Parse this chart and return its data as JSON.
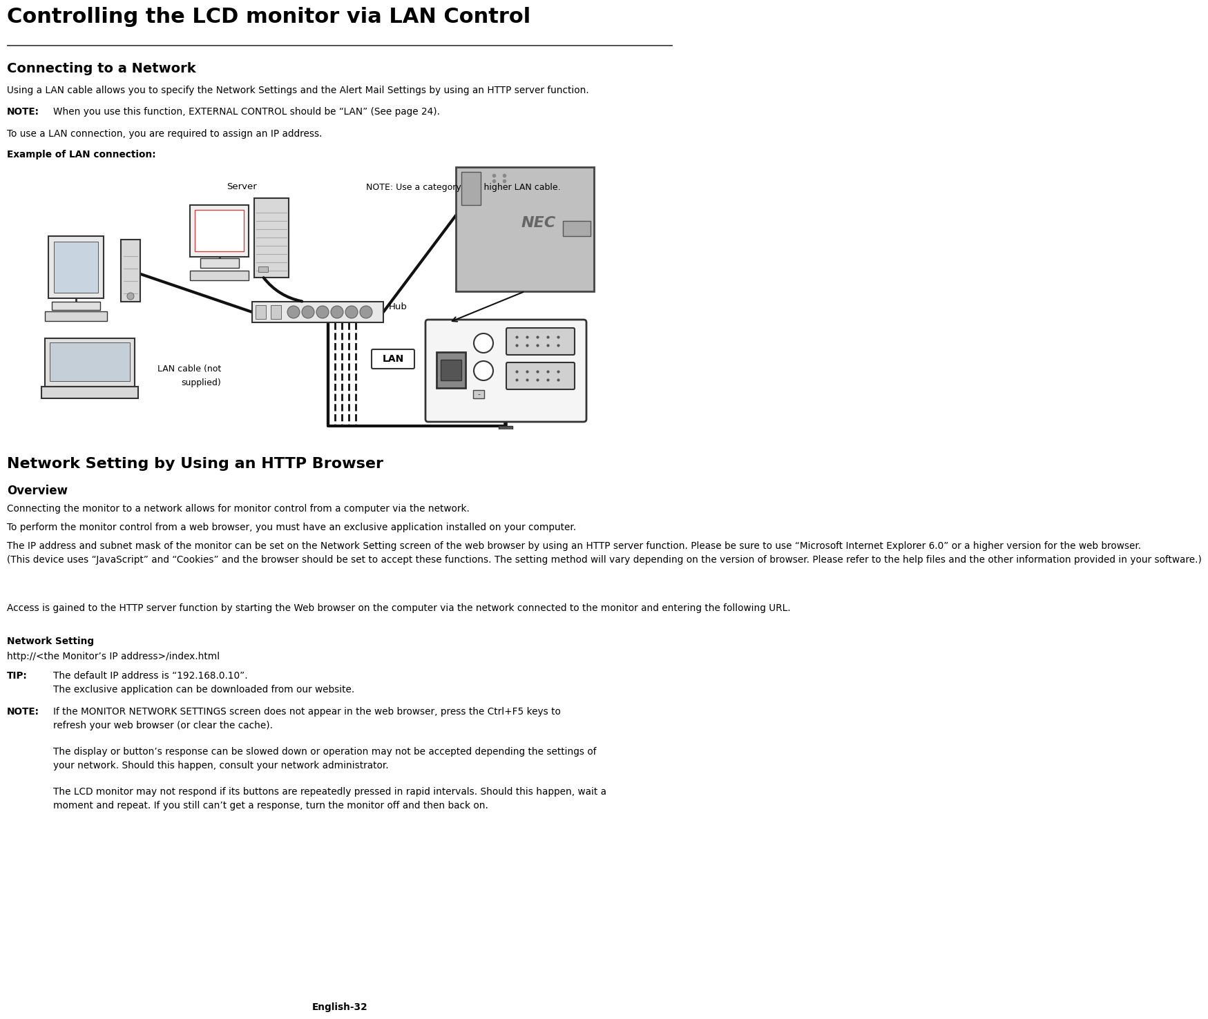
{
  "bg_color": "#ffffff",
  "title": "Controlling the LCD monitor via LAN Control",
  "section1_title": "Connecting to a Network",
  "section1_body": "Using a LAN cable allows you to specify the Network Settings and the Alert Mail Settings by using an HTTP server function.",
  "note1_label": "NOTE:",
  "note1_text": "When you use this function, EXTERNAL CONTROL should be “LAN” (See page 24).",
  "para1": "To use a LAN connection, you are required to assign an IP address.",
  "example_label": "Example of LAN connection:",
  "diagram_note": "NOTE: Use a category 5 or higher LAN cable.",
  "lan_label": "LAN",
  "lan_cable_label": "LAN cable (not\nsupplied)",
  "hub_label": "Hub",
  "server_label": "Server",
  "section2_title": "Network Setting by Using an HTTP Browser",
  "overview_title": "Overview",
  "overview_body1": "Connecting the monitor to a network allows for monitor control from a computer via the network.",
  "overview_body2": "To perform the monitor control from a web browser, you must have an exclusive application installed on your computer.",
  "overview_body3": "The IP address and subnet mask of the monitor can be set on the Network Setting screen of the web browser by using an HTTP server function. Please be sure to use “Microsoft Internet Explorer 6.0” or a higher version for the web browser.\n(This device uses “JavaScript” and “Cookies” and the browser should be set to accept these functions. The setting method will vary depending on the version of browser. Please refer to the help files and the other information provided in your software.)",
  "overview_body4": "Access is gained to the HTTP server function by starting the Web browser on the computer via the network connected to the monitor and entering the following URL.",
  "network_setting_label": "Network Setting",
  "url_text": "http://<the Monitor’s IP address>/index.html",
  "tip_label": "TIP:",
  "tip_line1": "The default IP address is “192.168.0.10”.",
  "tip_line2": "The exclusive application can be downloaded from our website.",
  "note2_label": "NOTE:",
  "note2_line1": "If the MONITOR NETWORK SETTINGS screen does not appear in the web browser, press the Ctrl+F5 keys to",
  "note2_line2": "refresh your web browser (or clear the cache).",
  "note3_line1": "The display or button’s response can be slowed down or operation may not be accepted depending the settings of",
  "note3_line2": "your network. Should this happen, consult your network administrator.",
  "note4_line1": "The LCD monitor may not respond if its buttons are repeatedly pressed in rapid intervals. Should this happen, wait a",
  "note4_line2": "moment and repeat. If you still can’t get a response, turn the monitor off and then back on.",
  "footer": "English-32"
}
